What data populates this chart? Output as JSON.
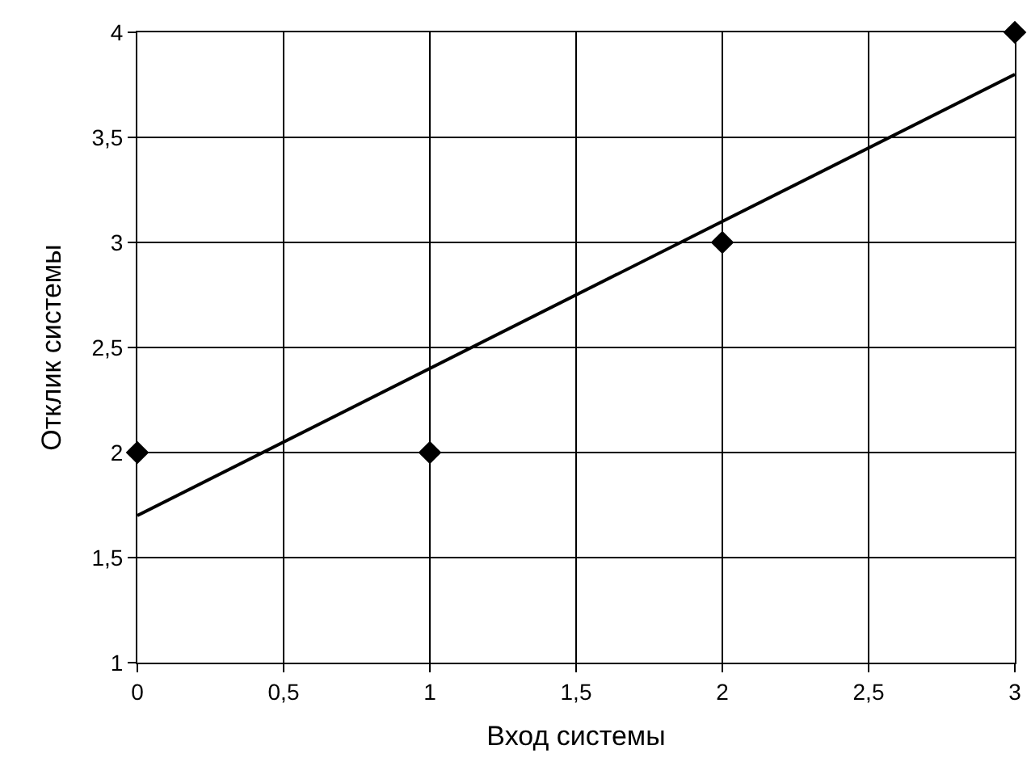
{
  "chart_data": {
    "type": "scatter",
    "xlabel": "Вход системы",
    "ylabel": "Отклик системы",
    "xlim": [
      0,
      3
    ],
    "ylim": [
      1,
      4
    ],
    "xticks": [
      0,
      {
        "value": 0.5,
        "label": "0,5"
      },
      1,
      {
        "value": 1.5,
        "label": "1,5"
      },
      2,
      {
        "value": 2.5,
        "label": "2,5"
      },
      3
    ],
    "yticks": [
      1,
      {
        "value": 1.5,
        "label": "1,5"
      },
      2,
      {
        "value": 2.5,
        "label": "2,5"
      },
      3,
      {
        "value": 3.5,
        "label": "3,5"
      },
      4
    ],
    "grid": true,
    "series": [
      {
        "color": "#000000",
        "marker": "diamond",
        "x": [
          0,
          1,
          2,
          3
        ],
        "values": [
          2,
          2,
          3,
          4
        ]
      },
      {
        "type": "line",
        "color": "#000000",
        "marker": "none",
        "line_style": "solid",
        "x": [
          0,
          3
        ],
        "values": [
          1.7,
          3.8
        ]
      }
    ]
  }
}
